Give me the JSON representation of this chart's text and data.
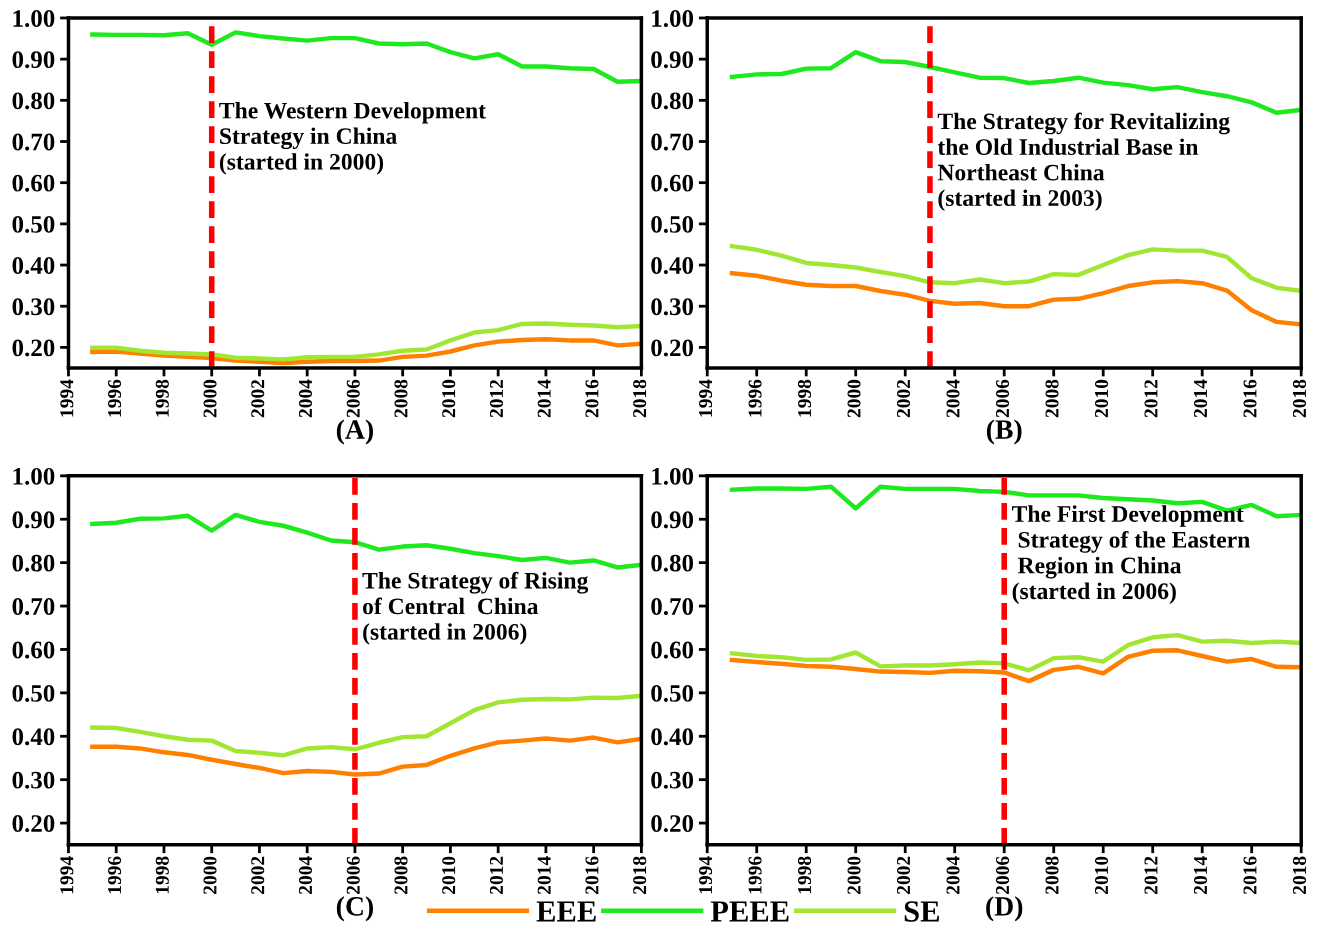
{
  "chart_data": [
    {
      "type": "line",
      "xlabel": "(A)",
      "x": [
        1995,
        1996,
        1997,
        1998,
        1999,
        2000,
        2001,
        2002,
        2003,
        2004,
        2005,
        2006,
        2007,
        2008,
        2009,
        2010,
        2011,
        2012,
        2013,
        2014,
        2015,
        2016,
        2017,
        2018
      ],
      "xlim": [
        1994,
        2018
      ],
      "xticks": [
        1994,
        1996,
        1998,
        2000,
        2002,
        2004,
        2006,
        2008,
        2010,
        2012,
        2014,
        2016,
        2018
      ],
      "ylim": [
        0.15,
        1.0
      ],
      "yticks": [
        {
          "value": 0.2,
          "label": "0.20"
        },
        {
          "value": 0.3,
          "label": "0.30"
        },
        {
          "value": 0.4,
          "label": "0.40"
        },
        {
          "value": 0.5,
          "label": "0.50"
        },
        {
          "value": 0.6,
          "label": "0.60"
        },
        {
          "value": 0.7,
          "label": "0.70"
        },
        {
          "value": 0.8,
          "label": "0.80"
        },
        {
          "value": 0.9,
          "label": "0.90"
        },
        {
          "value": 1.0,
          "label": "1.00"
        }
      ],
      "grid": false,
      "ref_lines": [
        {
          "axis": "x",
          "value": 2000,
          "label": "The Western Development\nStrategy in China\n(started in 2000)",
          "color": "#ff0000",
          "line_style": "dashed"
        }
      ],
      "series": [
        {
          "color": "#ff8000",
          "values": [
            0.189,
            0.19,
            0.185,
            0.18,
            0.177,
            0.174,
            0.168,
            0.165,
            0.162,
            0.165,
            0.167,
            0.167,
            0.168,
            0.177,
            0.18,
            0.19,
            0.205,
            0.214,
            0.218,
            0.22,
            0.217,
            0.217,
            0.205,
            0.209
          ]
        },
        {
          "color": "#1ee81e",
          "values": [
            0.96,
            0.959,
            0.959,
            0.958,
            0.963,
            0.935,
            0.965,
            0.956,
            0.95,
            0.945,
            0.951,
            0.951,
            0.938,
            0.936,
            0.938,
            0.917,
            0.902,
            0.912,
            0.882,
            0.882,
            0.878,
            0.876,
            0.845,
            0.847
          ]
        },
        {
          "color": "#a2e634",
          "values": [
            0.199,
            0.199,
            0.192,
            0.187,
            0.185,
            0.183,
            0.175,
            0.173,
            0.171,
            0.176,
            0.177,
            0.177,
            0.183,
            0.192,
            0.195,
            0.217,
            0.236,
            0.242,
            0.257,
            0.258,
            0.255,
            0.253,
            0.249,
            0.252
          ]
        }
      ]
    },
    {
      "type": "line",
      "xlabel": "(B)",
      "x": [
        1995,
        1996,
        1997,
        1998,
        1999,
        2000,
        2001,
        2002,
        2003,
        2004,
        2005,
        2006,
        2007,
        2008,
        2009,
        2010,
        2011,
        2012,
        2013,
        2014,
        2015,
        2016,
        2017,
        2018
      ],
      "xlim": [
        1994,
        2018
      ],
      "xticks": [
        1994,
        1996,
        1998,
        2000,
        2002,
        2004,
        2006,
        2008,
        2010,
        2012,
        2014,
        2016,
        2018
      ],
      "ylim": [
        0.15,
        1.0
      ],
      "yticks": [
        {
          "value": 0.2,
          "label": "0.20"
        },
        {
          "value": 0.3,
          "label": "0.30"
        },
        {
          "value": 0.4,
          "label": "0.40"
        },
        {
          "value": 0.5,
          "label": "0.50"
        },
        {
          "value": 0.6,
          "label": "0.60"
        },
        {
          "value": 0.7,
          "label": "0.70"
        },
        {
          "value": 0.8,
          "label": "0.80"
        },
        {
          "value": 0.9,
          "label": "0.90"
        },
        {
          "value": 1.0,
          "label": "1.00"
        }
      ],
      "grid": false,
      "ref_lines": [
        {
          "axis": "x",
          "value": 2003,
          "label": "The Strategy for Revitalizing\nthe Old Industrial Base in\nNortheast China\n(started in 2003)",
          "color": "#ff0000",
          "line_style": "dashed"
        }
      ],
      "series": [
        {
          "color": "#ff8000",
          "values": [
            0.38,
            0.374,
            0.362,
            0.352,
            0.349,
            0.349,
            0.337,
            0.328,
            0.313,
            0.306,
            0.308,
            0.3,
            0.3,
            0.316,
            0.318,
            0.332,
            0.349,
            0.358,
            0.361,
            0.356,
            0.338,
            0.29,
            0.262,
            0.256
          ]
        },
        {
          "color": "#1ee81e",
          "values": [
            0.857,
            0.863,
            0.864,
            0.877,
            0.878,
            0.917,
            0.895,
            0.893,
            0.881,
            0.868,
            0.855,
            0.854,
            0.842,
            0.847,
            0.855,
            0.843,
            0.837,
            0.827,
            0.832,
            0.82,
            0.81,
            0.795,
            0.77,
            0.777
          ]
        },
        {
          "color": "#a2e634",
          "values": [
            0.446,
            0.437,
            0.423,
            0.405,
            0.4,
            0.394,
            0.383,
            0.373,
            0.358,
            0.356,
            0.365,
            0.356,
            0.36,
            0.378,
            0.376,
            0.4,
            0.424,
            0.438,
            0.435,
            0.435,
            0.42,
            0.368,
            0.345,
            0.337
          ]
        }
      ]
    },
    {
      "type": "line",
      "xlabel": "(C)",
      "x": [
        1995,
        1996,
        1997,
        1998,
        1999,
        2000,
        2001,
        2002,
        2003,
        2004,
        2005,
        2006,
        2007,
        2008,
        2009,
        2010,
        2011,
        2012,
        2013,
        2014,
        2015,
        2016,
        2017,
        2018
      ],
      "xlim": [
        1994,
        2018
      ],
      "xticks": [
        1994,
        1996,
        1998,
        2000,
        2002,
        2004,
        2006,
        2008,
        2010,
        2012,
        2014,
        2016,
        2018
      ],
      "ylim": [
        0.15,
        1.0
      ],
      "yticks": [
        {
          "value": 0.2,
          "label": "0.20"
        },
        {
          "value": 0.3,
          "label": "0.30"
        },
        {
          "value": 0.4,
          "label": "0.40"
        },
        {
          "value": 0.5,
          "label": "0.50"
        },
        {
          "value": 0.6,
          "label": "0.60"
        },
        {
          "value": 0.7,
          "label": "0.70"
        },
        {
          "value": 0.8,
          "label": "0.80"
        },
        {
          "value": 0.9,
          "label": "0.90"
        },
        {
          "value": 1.0,
          "label": "1.00"
        }
      ],
      "grid": false,
      "legend": "bottom",
      "ref_lines": [
        {
          "axis": "x",
          "value": 2006,
          "label": "The Strategy of Rising\nof Central  China\n(started in 2006)",
          "color": "#ff0000",
          "line_style": "dashed"
        }
      ],
      "series": [
        {
          "name": "EEE",
          "color": "#ff8000",
          "values": [
            0.376,
            0.376,
            0.372,
            0.363,
            0.357,
            0.346,
            0.336,
            0.327,
            0.315,
            0.32,
            0.318,
            0.312,
            0.314,
            0.33,
            0.334,
            0.355,
            0.372,
            0.386,
            0.39,
            0.395,
            0.39,
            0.397,
            0.386,
            0.394
          ]
        },
        {
          "name": "PEEE",
          "color": "#1ee81e",
          "values": [
            0.889,
            0.892,
            0.901,
            0.902,
            0.908,
            0.874,
            0.91,
            0.894,
            0.885,
            0.869,
            0.851,
            0.847,
            0.83,
            0.837,
            0.84,
            0.832,
            0.822,
            0.815,
            0.806,
            0.811,
            0.8,
            0.805,
            0.789,
            0.795
          ]
        },
        {
          "name": "SE",
          "color": "#a2e634",
          "values": [
            0.42,
            0.419,
            0.41,
            0.4,
            0.392,
            0.39,
            0.366,
            0.362,
            0.356,
            0.372,
            0.375,
            0.37,
            0.385,
            0.398,
            0.4,
            0.43,
            0.46,
            0.478,
            0.484,
            0.486,
            0.485,
            0.489,
            0.488,
            0.493
          ]
        }
      ]
    },
    {
      "type": "line",
      "xlabel": "(D)",
      "x": [
        1995,
        1996,
        1997,
        1998,
        1999,
        2000,
        2001,
        2002,
        2003,
        2004,
        2005,
        2006,
        2007,
        2008,
        2009,
        2010,
        2011,
        2012,
        2013,
        2014,
        2015,
        2016,
        2017,
        2018
      ],
      "xlim": [
        1994,
        2018
      ],
      "xticks": [
        1994,
        1996,
        1998,
        2000,
        2002,
        2004,
        2006,
        2008,
        2010,
        2012,
        2014,
        2016,
        2018
      ],
      "ylim": [
        0.15,
        1.0
      ],
      "yticks": [
        {
          "value": 0.2,
          "label": "0.20"
        },
        {
          "value": 0.3,
          "label": "0.30"
        },
        {
          "value": 0.4,
          "label": "0.40"
        },
        {
          "value": 0.5,
          "label": "0.50"
        },
        {
          "value": 0.6,
          "label": "0.60"
        },
        {
          "value": 0.7,
          "label": "0.70"
        },
        {
          "value": 0.8,
          "label": "0.80"
        },
        {
          "value": 0.9,
          "label": "0.90"
        },
        {
          "value": 1.0,
          "label": "1.00"
        }
      ],
      "grid": false,
      "ref_lines": [
        {
          "axis": "x",
          "value": 2006,
          "label": "The First Development\n Strategy of the Eastern\n Region in China\n(started in 2006)",
          "color": "#ff0000",
          "line_style": "dashed"
        }
      ],
      "series": [
        {
          "color": "#ff8000",
          "values": [
            0.576,
            0.571,
            0.567,
            0.562,
            0.56,
            0.555,
            0.549,
            0.548,
            0.546,
            0.551,
            0.55,
            0.547,
            0.527,
            0.553,
            0.56,
            0.545,
            0.583,
            0.597,
            0.598,
            0.585,
            0.572,
            0.578,
            0.56,
            0.559
          ]
        },
        {
          "color": "#1ee81e",
          "values": [
            0.968,
            0.971,
            0.971,
            0.97,
            0.975,
            0.925,
            0.975,
            0.97,
            0.97,
            0.97,
            0.965,
            0.963,
            0.955,
            0.955,
            0.955,
            0.949,
            0.946,
            0.943,
            0.937,
            0.94,
            0.92,
            0.933,
            0.907,
            0.91
          ]
        },
        {
          "color": "#a2e634",
          "values": [
            0.591,
            0.585,
            0.582,
            0.576,
            0.577,
            0.593,
            0.561,
            0.563,
            0.563,
            0.566,
            0.57,
            0.568,
            0.552,
            0.58,
            0.582,
            0.572,
            0.61,
            0.628,
            0.633,
            0.618,
            0.62,
            0.615,
            0.618,
            0.615
          ]
        }
      ]
    }
  ]
}
